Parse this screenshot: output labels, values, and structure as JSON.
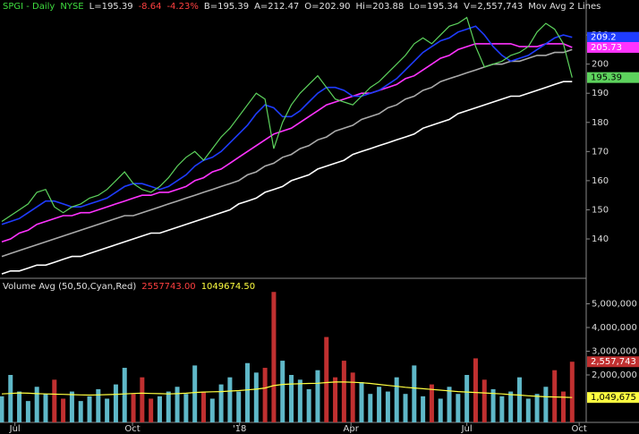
{
  "chart_data": [
    {
      "type": "line",
      "header": [
        {
          "text": "SPGI - Daily",
          "color": "#3fdc3f"
        },
        {
          "text": "NYSE",
          "color": "#3fdc3f"
        },
        {
          "text": "L=195.39",
          "color": "#e0e0e0"
        },
        {
          "text": "-8.64",
          "color": "#ff4040"
        },
        {
          "text": "-4.23%",
          "color": "#ff4040"
        },
        {
          "text": "B=195.39",
          "color": "#e0e0e0"
        },
        {
          "text": "A=212.47",
          "color": "#e0e0e0"
        },
        {
          "text": "O=202.90",
          "color": "#e0e0e0"
        },
        {
          "text": "Hi=203.88",
          "color": "#e0e0e0"
        },
        {
          "text": "Lo=195.34",
          "color": "#e0e0e0"
        },
        {
          "text": "V=2,557,743",
          "color": "#e0e0e0"
        },
        {
          "text": "Mov Avg 2 Lines",
          "color": "#e0e0e0"
        }
      ],
      "x": [
        0,
        1,
        2,
        3,
        4,
        5,
        6,
        7,
        8,
        9,
        10,
        11,
        12,
        13,
        14,
        15,
        16,
        17,
        18,
        19,
        20,
        21,
        22,
        23,
        24,
        25,
        26,
        27,
        28,
        29,
        30,
        31,
        32,
        33,
        34,
        35,
        36,
        37,
        38,
        39,
        40,
        41,
        42,
        43,
        44,
        45,
        46,
        47,
        48,
        49,
        50,
        51,
        52,
        53,
        54,
        55,
        56,
        57,
        58,
        59,
        60,
        61,
        62,
        63,
        64,
        65
      ],
      "xlim": [
        -0.2,
        66.6
      ],
      "xticks": [
        {
          "value": 1.5,
          "label": "Jul"
        },
        {
          "value": 14.9,
          "label": "Oct"
        },
        {
          "value": 27.1,
          "label": "'18"
        },
        {
          "value": 39.8,
          "label": "Apr"
        },
        {
          "value": 53,
          "label": "Jul"
        },
        {
          "value": 65.8,
          "label": "Oct"
        }
      ],
      "ylim": [
        126.8,
        217.4
      ],
      "yticks": [
        140,
        150,
        160,
        170,
        180,
        190,
        200,
        210
      ],
      "series": [
        {
          "name": "Price",
          "color": "#5dd35d",
          "label_box": true,
          "values": [
            146,
            148,
            150,
            152,
            156,
            157,
            151,
            149,
            151,
            152,
            154,
            155,
            157,
            160,
            163,
            159,
            157,
            156,
            158,
            161,
            165,
            168,
            170,
            167,
            171,
            175,
            178,
            182,
            186,
            190,
            188,
            171,
            180,
            186,
            190,
            193,
            196,
            192,
            188,
            187,
            186,
            189,
            192,
            194,
            197,
            200,
            203,
            207,
            209,
            207,
            210,
            213,
            214,
            216,
            206,
            199,
            200,
            201,
            203,
            204,
            206,
            211,
            214,
            212,
            207,
            195.39
          ]
        },
        {
          "name": "MA Blue",
          "color": "#1f3cff",
          "label_box": true,
          "values": [
            145,
            146,
            147,
            149,
            151,
            153,
            153,
            152,
            151,
            151,
            152,
            153,
            154,
            156,
            158,
            159,
            159,
            158,
            157,
            158,
            160,
            162,
            165,
            167,
            168,
            170,
            173,
            176,
            179,
            183,
            186,
            185,
            182,
            182,
            184,
            187,
            190,
            192,
            192,
            191,
            189,
            189,
            190,
            191,
            193,
            195,
            198,
            201,
            204,
            206,
            208,
            209,
            211,
            212,
            213,
            210,
            206,
            203,
            201,
            202,
            203,
            205,
            207,
            209,
            210,
            209.2
          ]
        },
        {
          "name": "MA Magenta",
          "color": "#ff33ff",
          "label_box": true,
          "values": [
            139,
            140,
            142,
            143,
            145,
            146,
            147,
            148,
            148,
            149,
            149,
            150,
            151,
            152,
            153,
            154,
            155,
            155,
            156,
            156,
            157,
            158,
            160,
            161,
            163,
            164,
            166,
            168,
            170,
            172,
            174,
            176,
            177,
            178,
            180,
            182,
            184,
            186,
            187,
            188,
            189,
            190,
            190,
            191,
            192,
            193,
            195,
            196,
            198,
            200,
            202,
            203,
            205,
            206,
            207,
            207,
            207,
            207,
            207,
            206,
            206,
            206,
            207,
            207,
            207,
            205.73
          ]
        },
        {
          "name": "MA Gray",
          "color": "#aaaaaa",
          "label_box": false,
          "values": [
            134,
            135,
            136,
            137,
            138,
            139,
            140,
            141,
            142,
            143,
            144,
            145,
            146,
            147,
            148,
            148,
            149,
            150,
            151,
            152,
            153,
            154,
            155,
            156,
            157,
            158,
            159,
            160,
            162,
            163,
            165,
            166,
            168,
            169,
            171,
            172,
            174,
            175,
            177,
            178,
            179,
            181,
            182,
            183,
            185,
            186,
            188,
            189,
            191,
            192,
            194,
            195,
            196,
            197,
            198,
            199,
            200,
            200,
            201,
            201,
            202,
            203,
            203,
            204,
            204,
            205
          ]
        },
        {
          "name": "MA White",
          "color": "#ffffff",
          "label_box": false,
          "values": [
            128,
            129,
            129,
            130,
            131,
            131,
            132,
            133,
            134,
            134,
            135,
            136,
            137,
            138,
            139,
            140,
            141,
            142,
            142,
            143,
            144,
            145,
            146,
            147,
            148,
            149,
            150,
            152,
            153,
            154,
            156,
            157,
            158,
            160,
            161,
            162,
            164,
            165,
            166,
            167,
            169,
            170,
            171,
            172,
            173,
            174,
            175,
            176,
            178,
            179,
            180,
            181,
            183,
            184,
            185,
            186,
            187,
            188,
            189,
            189,
            190,
            191,
            192,
            193,
            194,
            194
          ]
        }
      ]
    },
    {
      "type": "bar",
      "header": [
        {
          "text": "Volume Avg (50,50,Cyan,Red)",
          "color": "#e0e0e0"
        },
        {
          "text": "2557743.00",
          "color": "#ff4040"
        },
        {
          "text": "1049674.50",
          "color": "#ffff40"
        }
      ],
      "ylim": [
        0,
        6000000
      ],
      "yticks": [
        {
          "value": 2000000,
          "label": "2,000,000"
        },
        {
          "value": 3000000,
          "label": "3,000,000"
        },
        {
          "value": 4000000,
          "label": "4,000,000"
        },
        {
          "value": 5000000,
          "label": "5,000,000"
        }
      ],
      "up_color": "#5fb8c8",
      "down_color": "#c03030",
      "series": [
        {
          "name": "Volume",
          "color": "#c03030",
          "last_label": "2,557,743",
          "values": [
            1100000,
            2000000,
            1300000,
            900000,
            1500000,
            1200000,
            1800000,
            1000000,
            1300000,
            900000,
            1100000,
            1400000,
            1000000,
            1600000,
            2300000,
            1200000,
            1900000,
            1000000,
            1100000,
            1300000,
            1500000,
            1200000,
            2400000,
            1300000,
            1000000,
            1600000,
            1900000,
            1300000,
            2500000,
            2100000,
            2300000,
            5500000,
            2600000,
            2000000,
            1800000,
            1400000,
            2200000,
            3600000,
            1900000,
            2600000,
            2100000,
            1700000,
            1200000,
            1500000,
            1300000,
            1900000,
            1200000,
            2400000,
            1100000,
            1600000,
            1000000,
            1500000,
            1200000,
            2000000,
            2700000,
            1800000,
            1400000,
            1100000,
            1300000,
            1900000,
            1000000,
            1200000,
            1500000,
            2200000,
            1300000,
            2557743
          ]
        },
        {
          "name": "Volume Avg",
          "color": "#ffff40",
          "last_label": "1,049,675",
          "values": [
            1200000,
            1220000,
            1240000,
            1230000,
            1210000,
            1200000,
            1190000,
            1180000,
            1170000,
            1160000,
            1150000,
            1160000,
            1170000,
            1180000,
            1200000,
            1220000,
            1230000,
            1220000,
            1210000,
            1200000,
            1210000,
            1230000,
            1260000,
            1280000,
            1290000,
            1300000,
            1320000,
            1340000,
            1370000,
            1400000,
            1450000,
            1550000,
            1600000,
            1620000,
            1630000,
            1640000,
            1650000,
            1680000,
            1700000,
            1700000,
            1690000,
            1670000,
            1640000,
            1600000,
            1560000,
            1520000,
            1480000,
            1450000,
            1420000,
            1390000,
            1360000,
            1330000,
            1300000,
            1280000,
            1260000,
            1240000,
            1220000,
            1200000,
            1170000,
            1150000,
            1120000,
            1100000,
            1080000,
            1070000,
            1060000,
            1049675
          ]
        }
      ]
    }
  ]
}
